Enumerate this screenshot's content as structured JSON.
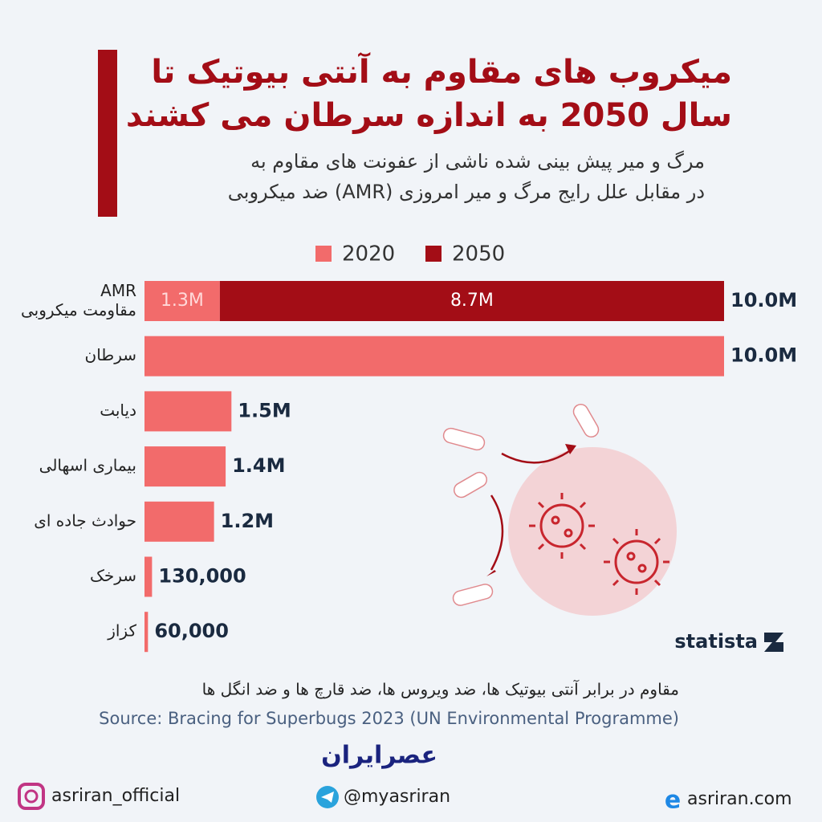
{
  "chart_data": {
    "type": "stacked-barh",
    "title": [
      "میکروب های مقاوم به آنتی بیوتیک تا",
      "سال 2050 به اندازه سرطان می کشند"
    ],
    "subtitle": [
      "مرگ و میر پیش بینی شده ناشی از عفونت های مقاوم به",
      "ضد میکروبی (AMR) در مقابل علل رایج مرگ و میر امروزی"
    ],
    "categories": [
      "AMR\nمقاومت میکروبی",
      "سرطان",
      "دیابت",
      "بیماری اسهالی",
      "حوادث جاده ای",
      "سرخک",
      "کزاز"
    ],
    "series": [
      {
        "name": "2020",
        "color": "#f26b6b",
        "values": [
          1300000,
          10000000,
          1500000,
          1400000,
          1200000,
          130000,
          60000
        ],
        "value_labels": [
          "1.3M",
          null,
          null,
          null,
          null,
          null,
          null
        ]
      },
      {
        "name": "2050",
        "color": "#a30d16",
        "values": [
          8700000,
          null,
          null,
          null,
          null,
          null,
          null
        ],
        "value_labels": [
          "8.7M",
          null,
          null,
          null,
          null,
          null,
          null
        ]
      }
    ],
    "totals": [
      10000000,
      10000000,
      1500000,
      1400000,
      1200000,
      130000,
      60000
    ],
    "total_labels": [
      "10.0M",
      "10.0M",
      "1.5M",
      "1.4M",
      "1.2M",
      "130,000",
      "60,000"
    ],
    "xlim": [
      0,
      10000000
    ],
    "note": "مقاوم در برابر آنتی بیوتیک ها، ضد ویروس ها، ضد قارچ ها و ضد انگل ها",
    "source": "Source: Bracing for Superbugs 2023 (UN Environmental Programme)",
    "credit": "statista"
  },
  "footer": {
    "logo": "عصرایران",
    "instagram": "asriran_official",
    "telegram": "@myasriran",
    "website": "asriran.com"
  }
}
